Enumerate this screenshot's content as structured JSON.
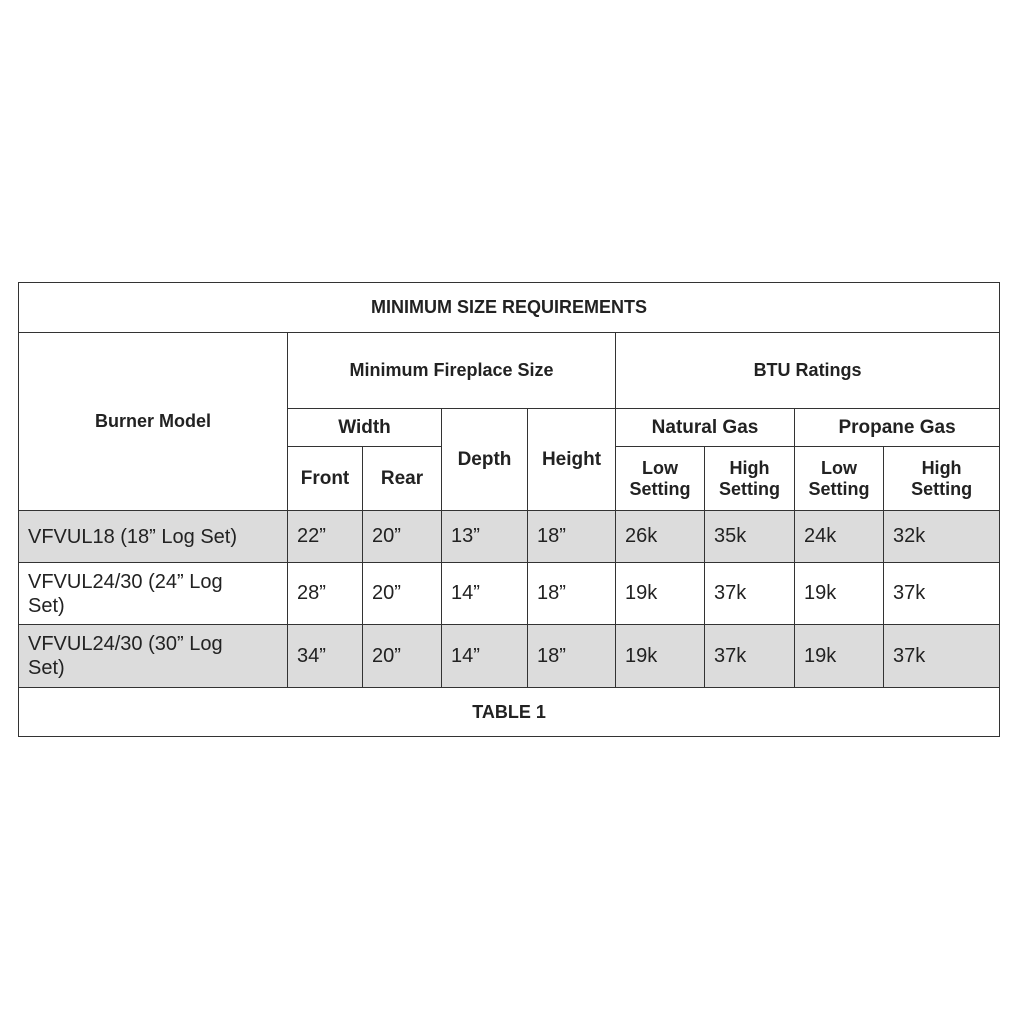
{
  "table": {
    "title": "MINIMUM SIZE REQUIREMENTS",
    "headers": {
      "burner_model": "Burner Model",
      "fireplace_size": "Minimum Fireplace Size",
      "btu_ratings": "BTU Ratings",
      "width": "Width",
      "front": "Front",
      "rear": "Rear",
      "depth": "Depth",
      "height": "Height",
      "natural_gas": "Natural Gas",
      "propane_gas": "Propane Gas",
      "settings": [
        "Low Setting",
        "High Setting",
        "Low Setting",
        "High Setting"
      ]
    },
    "rows": [
      [
        "VFVUL18 (18” Log Set)",
        "22”",
        "20”",
        "13”",
        "18”",
        "26k",
        "35k",
        "24k",
        "32k"
      ],
      [
        "VFVUL24/30 (24” Log Set)",
        "28”",
        "20”",
        "14”",
        "18”",
        "19k",
        "37k",
        "19k",
        "37k"
      ],
      [
        "VFVUL24/30 (30” Log Set)",
        "34”",
        "20”",
        "14”",
        "18”",
        "19k",
        "37k",
        "19k",
        "37k"
      ]
    ],
    "caption": "TABLE 1"
  }
}
